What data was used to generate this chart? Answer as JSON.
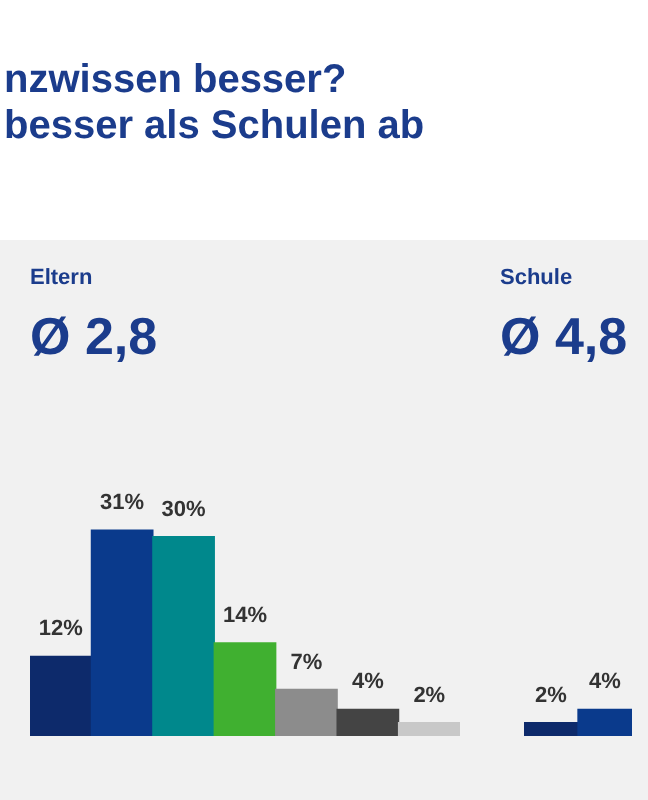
{
  "chart_data": [
    {
      "type": "bar",
      "title": "nzwissen besser?\nbesser als Schulen ab",
      "subtitle": "Eltern",
      "annotations": [
        "Ø 2,8"
      ],
      "categories": [
        null,
        null,
        null,
        null,
        null,
        null,
        null
      ],
      "values": [
        12,
        31,
        30,
        14,
        7,
        4,
        2
      ],
      "value_labels": [
        "12%",
        "31%",
        "30%",
        "14%",
        "7%",
        "4%",
        "2%"
      ],
      "colors": [
        "#0d2a6b",
        "#0a3a8c",
        "#00888c",
        "#40b030",
        "#8c8c8c",
        "#444444",
        "#c8c8c8"
      ]
    },
    {
      "type": "bar",
      "subtitle": "Schule",
      "annotations": [
        "Ø 4,8"
      ],
      "categories": [
        null,
        null
      ],
      "values": [
        2,
        4
      ],
      "value_labels": [
        "2%",
        "4%"
      ],
      "colors": [
        "#0d2a6b",
        "#0a3a8c"
      ]
    }
  ]
}
